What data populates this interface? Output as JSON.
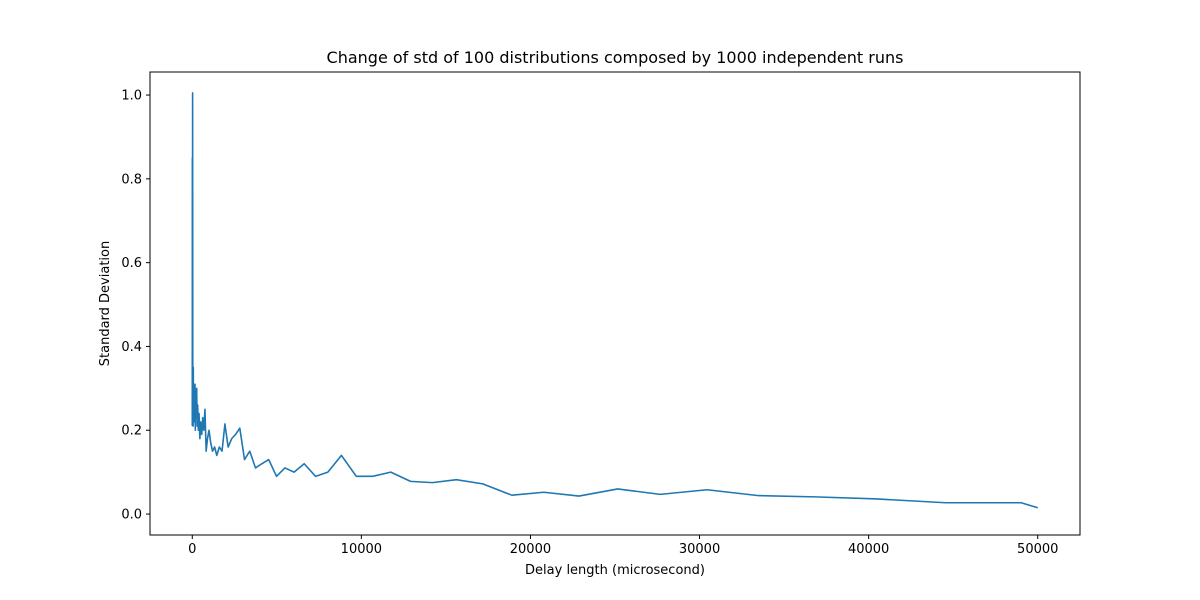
{
  "chart_data": {
    "type": "line",
    "title": "Change of std of 100 distributions composed by 1000 independent runs",
    "xlabel": "Delay length (microsecond)",
    "ylabel": "Standard Deviation",
    "xlim": [
      -2500,
      52500
    ],
    "ylim": [
      -0.05,
      1.055
    ],
    "xticks": [
      0,
      10000,
      20000,
      30000,
      40000,
      50000
    ],
    "xtick_labels": [
      "0",
      "10000",
      "20000",
      "30000",
      "40000",
      "50000"
    ],
    "yticks": [
      0.0,
      0.2,
      0.4,
      0.6,
      0.8,
      1.0
    ],
    "ytick_labels": [
      "0.0",
      "0.2",
      "0.4",
      "0.6",
      "0.8",
      "1.0"
    ],
    "grid": false,
    "series": [
      {
        "color": "#1f77b4",
        "x": [
          1,
          5,
          10,
          15,
          20,
          30,
          40,
          50,
          60,
          70,
          80,
          100,
          120,
          140,
          160,
          180,
          200,
          230,
          260,
          290,
          320,
          360,
          400,
          450,
          500,
          560,
          620,
          680,
          750,
          820,
          900,
          990,
          1090,
          1200,
          1320,
          1450,
          1600,
          1760,
          1930,
          2120,
          2330,
          2560,
          2810,
          3090,
          3400,
          3740,
          4110,
          4520,
          4980,
          5480,
          6020,
          6620,
          7290,
          8020,
          8820,
          9700,
          10670,
          11740,
          12910,
          14200,
          15620,
          17180,
          18900,
          20790,
          22870,
          25160,
          27670,
          30440,
          33480,
          36830,
          40510,
          44560,
          49020,
          50000
        ],
        "y": [
          0.21,
          0.85,
          0.3,
          0.52,
          1.005,
          0.35,
          0.23,
          0.21,
          0.35,
          0.22,
          0.27,
          0.23,
          0.25,
          0.22,
          0.31,
          0.2,
          0.29,
          0.23,
          0.3,
          0.21,
          0.26,
          0.2,
          0.24,
          0.18,
          0.22,
          0.19,
          0.23,
          0.2,
          0.25,
          0.15,
          0.18,
          0.2,
          0.17,
          0.15,
          0.16,
          0.14,
          0.16,
          0.15,
          0.215,
          0.16,
          0.18,
          0.19,
          0.205,
          0.13,
          0.15,
          0.11,
          0.12,
          0.13,
          0.09,
          0.11,
          0.1,
          0.12,
          0.09,
          0.1,
          0.14,
          0.09,
          0.09,
          0.1,
          0.078,
          0.075,
          0.082,
          0.072,
          0.045,
          0.052,
          0.043,
          0.06,
          0.047,
          0.058,
          0.044,
          0.041,
          0.036,
          0.027,
          0.027,
          0.015
        ]
      }
    ]
  }
}
